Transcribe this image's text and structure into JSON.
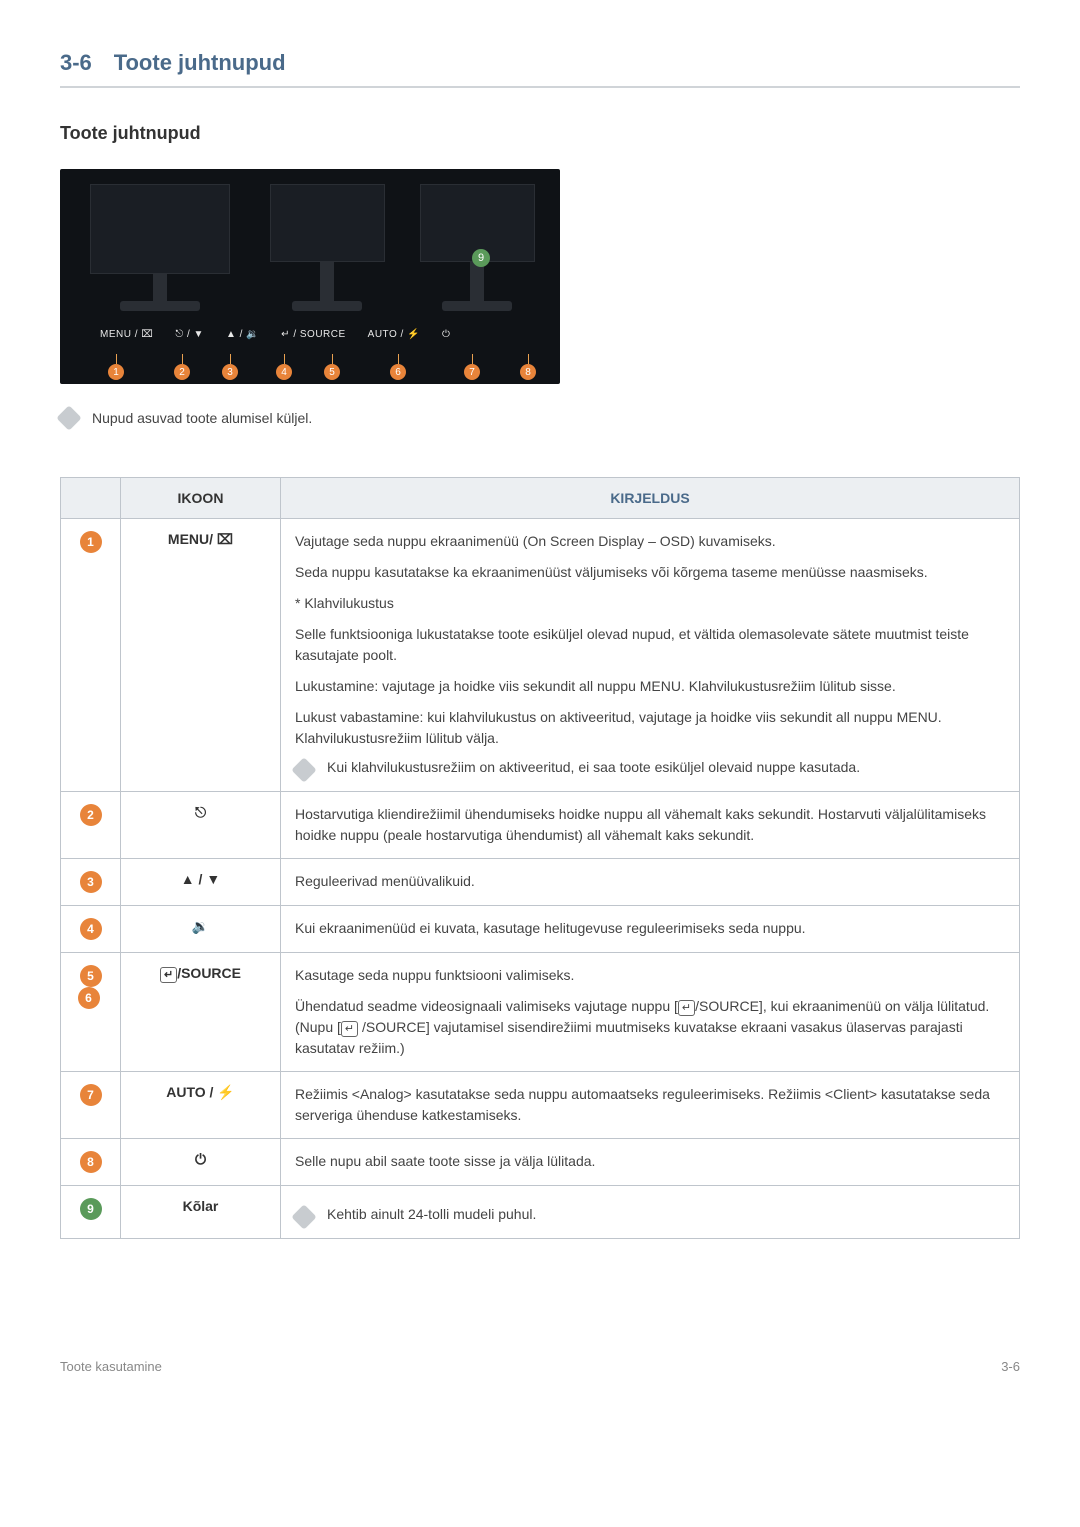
{
  "header": {
    "section_num": "3-6",
    "section_title": "Toote juhtnupud",
    "subsection_title": "Toote juhtnupud"
  },
  "image": {
    "button_labels": [
      "MENU / ⌧",
      "⎋ / ▼",
      "▲ / 🔉",
      "↵ / SOURCE",
      "AUTO / ⚡",
      "⏻"
    ],
    "marker_numbers": [
      "1",
      "2",
      "3",
      "4",
      "5",
      "6",
      "7",
      "8"
    ],
    "badge9": "9"
  },
  "note_below_image": "Nupud asuvad toote alumisel küljel.",
  "table": {
    "head": {
      "icon": "IKOON",
      "desc": "KIRJELDUS"
    },
    "rows": [
      {
        "num": "1",
        "num_color": "orange",
        "icon": "MENU/ ⌧",
        "paragraphs": [
          "Vajutage seda nuppu ekraanimenüü (On Screen Display – OSD) kuvamiseks.",
          "Seda nuppu kasutatakse ka ekraanimenüüst väljumiseks või kõrgema taseme menüüsse naasmiseks.",
          "* Klahvilukustus",
          "Selle funktsiooniga lukustatakse toote esiküljel olevad nupud, et vältida olemasolevate sätete muutmist teiste kasutajate poolt.",
          "Lukustamine: vajutage ja hoidke viis sekundit all nuppu MENU. Klahvilukustusrežiim lülitub sisse.",
          "Lukust vabastamine: kui klahvilukustus on aktiveeritud, vajutage ja hoidke viis sekundit all nuppu MENU. Klahvilukustusrežiim lülitub välja."
        ],
        "note": "Kui klahvilukustusrežiim on aktiveeritud, ei saa toote esiküljel olevaid nuppe kasutada."
      },
      {
        "num": "2",
        "num_color": "orange",
        "icon": "⎋",
        "paragraphs": [
          "Hostarvutiga kliendirežiimil ühendumiseks hoidke nuppu all vähemalt kaks sekundit. Hostarvuti väljalülitamiseks hoidke nuppu (peale hostarvutiga ühendumist) all vähemalt kaks sekundit."
        ]
      },
      {
        "num": "3",
        "num_color": "orange",
        "icon": "▲ / ▼",
        "paragraphs": [
          "Reguleerivad menüüvalikuid."
        ]
      },
      {
        "num": "4",
        "num_color": "orange",
        "icon": "🔉",
        "paragraphs": [
          "Kui ekraanimenüüd ei kuvata, kasutage helitugevuse reguleerimiseks seda nuppu."
        ]
      },
      {
        "num": "56",
        "num_color": "orange",
        "icon_html": true,
        "icon": "↵ /SOURCE",
        "paragraphs": [
          "Kasutage seda nuppu funktsiooni valimiseks.",
          "Ühendatud seadme videosignaali valimiseks vajutage nuppu [↵ /SOURCE], kui ekraanimenüü on välja lülitatud. (Nupu [↵ /SOURCE] vajutamisel sisendirežiimi muutmiseks kuvatakse ekraani vasakus ülaservas parajasti kasutatav režiim.)"
        ]
      },
      {
        "num": "7",
        "num_color": "orange",
        "icon": "AUTO / ⚡",
        "paragraphs": [
          "Režiimis <Analog> kasutatakse seda nuppu automaatseks reguleerimiseks. Režiimis <Client> kasutatakse seda serveriga ühenduse katkestamiseks."
        ]
      },
      {
        "num": "8",
        "num_color": "orange",
        "icon": "⏻",
        "paragraphs": [
          "Selle nupu abil saate toote sisse ja välja lülitada."
        ]
      },
      {
        "num": "9",
        "num_color": "green",
        "icon": "Kõlar",
        "note": "Kehtib ainult 24-tolli mudeli puhul."
      }
    ]
  },
  "footer": {
    "left": "Toote kasutamine",
    "right": "3-6"
  },
  "colors": {
    "heading": "#4a6a8a",
    "rule": "#d0d4d8",
    "table_border": "#bfc5cc",
    "table_head_bg": "#eceff2",
    "badge_orange": "#e8843a",
    "badge_green": "#5a9a5a",
    "note_icon": "#c8ccd0",
    "footer_text": "#888888"
  }
}
